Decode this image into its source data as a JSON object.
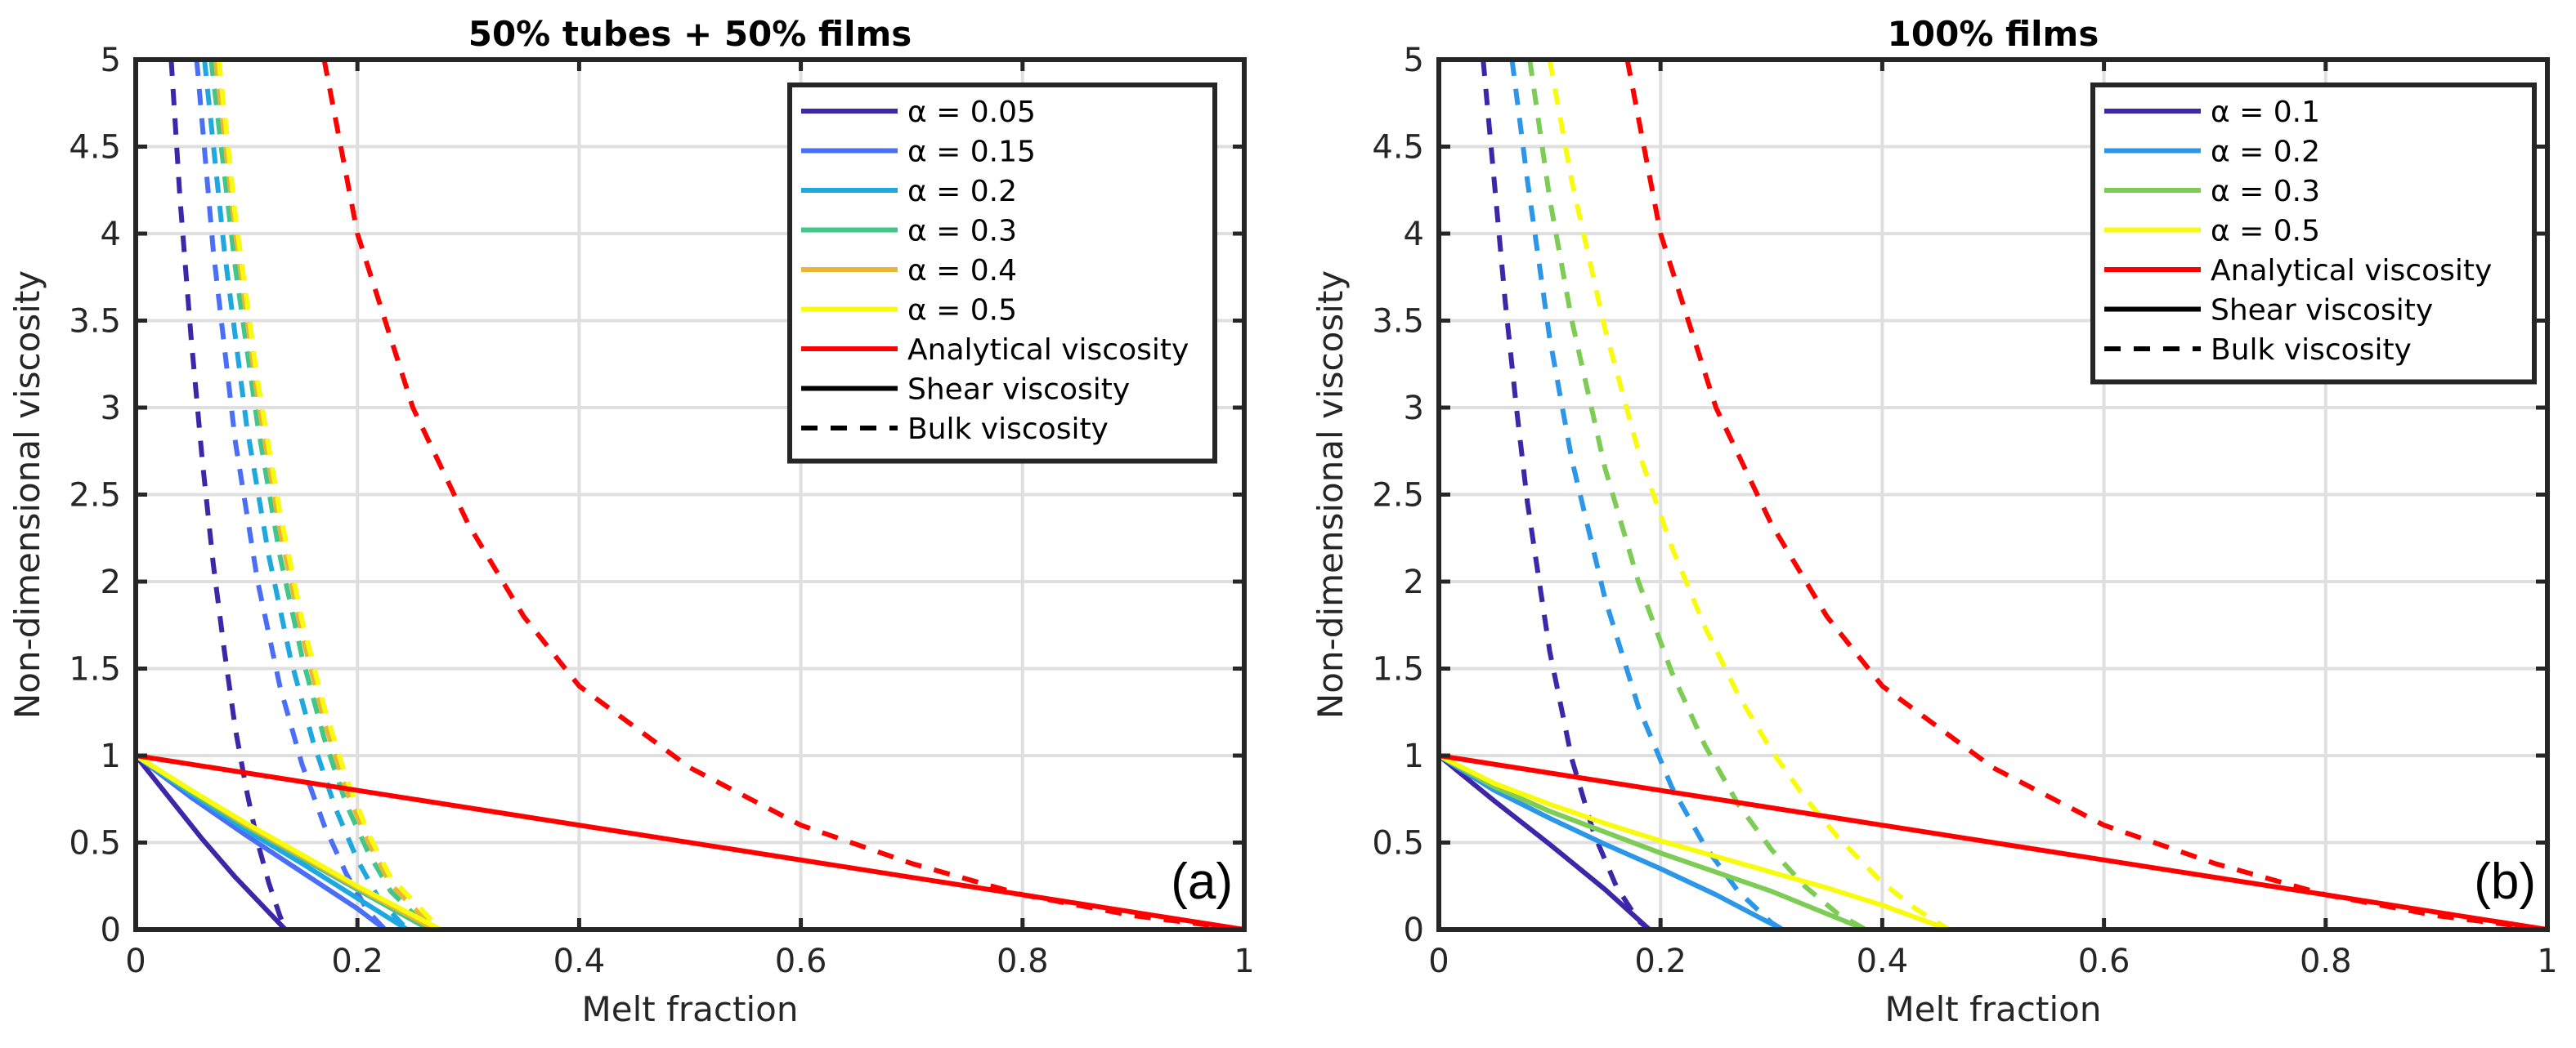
{
  "chart_data": [
    {
      "type": "line",
      "title": "50% tubes + 50% films",
      "panel_label": "(a)",
      "xlabel": "Melt fraction",
      "ylabel": "Non-dimensional viscosity",
      "xlim": [
        0,
        1
      ],
      "ylim": [
        0,
        5
      ],
      "xticks": [
        0,
        0.2,
        0.4,
        0.6,
        0.8,
        1
      ],
      "xtick_labels": [
        "0",
        "0.2",
        "0.4",
        "0.6",
        "0.8",
        "1"
      ],
      "yticks": [
        0,
        0.5,
        1,
        1.5,
        2,
        2.5,
        3,
        3.5,
        4,
        4.5,
        5
      ],
      "ytick_labels": [
        "0",
        "0.5",
        "1",
        "1.5",
        "2",
        "2.5",
        "3",
        "3.5",
        "4",
        "4.5",
        "5"
      ],
      "grid": true,
      "legend_position": "top-right",
      "legend": [
        {
          "label": "α = 0.05",
          "color": "#3e26a8",
          "style": "solid"
        },
        {
          "label": "α = 0.15",
          "color": "#4a6ef5",
          "style": "solid"
        },
        {
          "label": "α = 0.2",
          "color": "#1fa8e0",
          "style": "solid"
        },
        {
          "label": "α = 0.3",
          "color": "#42c68a",
          "style": "solid"
        },
        {
          "label": "α = 0.4",
          "color": "#e8b634",
          "style": "solid"
        },
        {
          "label": "α = 0.5",
          "color": "#f9fb0e",
          "style": "solid"
        },
        {
          "label": "Analytical viscosity",
          "color": "#ff0000",
          "style": "solid"
        },
        {
          "label": "Shear viscosity",
          "color": "#000000",
          "style": "solid"
        },
        {
          "label": "Bulk viscosity",
          "color": "#000000",
          "style": "dashed"
        }
      ],
      "series": [
        {
          "name": "α = 0.05 shear",
          "kind": "shear",
          "color": "#3e26a8",
          "dashed": false,
          "x": [
            0,
            0.03,
            0.06,
            0.09,
            0.12,
            0.135,
            1
          ],
          "y": [
            1,
            0.76,
            0.52,
            0.3,
            0.1,
            0,
            0
          ]
        },
        {
          "name": "α = 0.15 shear",
          "kind": "shear",
          "color": "#4a6ef5",
          "dashed": false,
          "x": [
            0,
            0.05,
            0.1,
            0.15,
            0.2,
            0.225,
            1
          ],
          "y": [
            1,
            0.76,
            0.54,
            0.33,
            0.12,
            0,
            0
          ]
        },
        {
          "name": "α = 0.2 shear",
          "kind": "shear",
          "color": "#1fa8e0",
          "dashed": false,
          "x": [
            0,
            0.05,
            0.1,
            0.15,
            0.2,
            0.245,
            1
          ],
          "y": [
            1,
            0.78,
            0.57,
            0.38,
            0.18,
            0,
            0
          ]
        },
        {
          "name": "α = 0.3 shear",
          "kind": "shear",
          "color": "#42c68a",
          "dashed": false,
          "x": [
            0,
            0.05,
            0.1,
            0.15,
            0.2,
            0.265,
            1
          ],
          "y": [
            1,
            0.79,
            0.59,
            0.41,
            0.23,
            0,
            0
          ]
        },
        {
          "name": "α = 0.4 shear",
          "kind": "shear",
          "color": "#e8b634",
          "dashed": false,
          "x": [
            0,
            0.05,
            0.1,
            0.15,
            0.2,
            0.27,
            1
          ],
          "y": [
            1,
            0.8,
            0.6,
            0.42,
            0.24,
            0,
            0
          ]
        },
        {
          "name": "α = 0.5 shear",
          "kind": "shear",
          "color": "#f9fb0e",
          "dashed": false,
          "x": [
            0,
            0.05,
            0.1,
            0.15,
            0.2,
            0.275,
            1
          ],
          "y": [
            1,
            0.8,
            0.61,
            0.43,
            0.25,
            0,
            0
          ]
        },
        {
          "name": "α = 0.05 bulk",
          "kind": "bulk",
          "color": "#3e26a8",
          "dashed": true,
          "x": [
            0.032,
            0.04,
            0.05,
            0.06,
            0.07,
            0.08,
            0.09,
            0.1,
            0.11,
            0.12,
            0.13,
            0.135
          ],
          "y": [
            5,
            4.2,
            3.4,
            2.7,
            2.1,
            1.6,
            1.15,
            0.8,
            0.5,
            0.27,
            0.08,
            0
          ]
        },
        {
          "name": "α = 0.15 bulk",
          "kind": "bulk",
          "color": "#4a6ef5",
          "dashed": true,
          "x": [
            0.055,
            0.07,
            0.09,
            0.11,
            0.13,
            0.15,
            0.17,
            0.19,
            0.21,
            0.225
          ],
          "y": [
            5,
            3.9,
            2.8,
            2.0,
            1.4,
            0.95,
            0.6,
            0.32,
            0.1,
            0
          ]
        },
        {
          "name": "α = 0.2 bulk",
          "kind": "bulk",
          "color": "#1fa8e0",
          "dashed": true,
          "x": [
            0.062,
            0.08,
            0.1,
            0.12,
            0.14,
            0.16,
            0.18,
            0.2,
            0.22,
            0.245
          ],
          "y": [
            5,
            3.9,
            2.9,
            2.15,
            1.55,
            1.08,
            0.7,
            0.4,
            0.17,
            0
          ]
        },
        {
          "name": "α = 0.3 bulk",
          "kind": "bulk",
          "color": "#42c68a",
          "dashed": true,
          "x": [
            0.068,
            0.09,
            0.11,
            0.13,
            0.15,
            0.17,
            0.19,
            0.21,
            0.23,
            0.265
          ],
          "y": [
            5,
            3.8,
            2.9,
            2.15,
            1.57,
            1.1,
            0.72,
            0.44,
            0.22,
            0
          ]
        },
        {
          "name": "α = 0.4 bulk",
          "kind": "bulk",
          "color": "#e8b634",
          "dashed": true,
          "x": [
            0.072,
            0.09,
            0.11,
            0.13,
            0.15,
            0.17,
            0.19,
            0.21,
            0.23,
            0.27
          ],
          "y": [
            5,
            4.0,
            3.05,
            2.3,
            1.7,
            1.2,
            0.8,
            0.5,
            0.26,
            0
          ]
        },
        {
          "name": "α = 0.5 bulk",
          "kind": "bulk",
          "color": "#f9fb0e",
          "dashed": true,
          "x": [
            0.075,
            0.09,
            0.11,
            0.13,
            0.15,
            0.17,
            0.19,
            0.21,
            0.23,
            0.275
          ],
          "y": [
            5,
            4.1,
            3.15,
            2.4,
            1.78,
            1.28,
            0.87,
            0.55,
            0.3,
            0
          ]
        },
        {
          "name": "Analytical shear",
          "kind": "analytical",
          "color": "#ff0000",
          "dashed": false,
          "x": [
            0,
            1
          ],
          "y": [
            1,
            0
          ]
        },
        {
          "name": "Analytical bulk",
          "kind": "analytical",
          "color": "#ff0000",
          "dashed": true,
          "x": [
            0.17,
            0.2,
            0.25,
            0.3,
            0.35,
            0.4,
            0.5,
            0.6,
            0.7,
            0.8,
            0.9,
            1.0
          ],
          "y": [
            5,
            4.0,
            3.0,
            2.33,
            1.8,
            1.4,
            0.93,
            0.6,
            0.38,
            0.2,
            0.08,
            0
          ]
        }
      ]
    },
    {
      "type": "line",
      "title": "100% films",
      "panel_label": "(b)",
      "xlabel": "Melt fraction",
      "ylabel": "Non-dimensional viscosity",
      "xlim": [
        0,
        1
      ],
      "ylim": [
        0,
        5
      ],
      "xticks": [
        0,
        0.2,
        0.4,
        0.6,
        0.8,
        1
      ],
      "xtick_labels": [
        "0",
        "0.2",
        "0.4",
        "0.6",
        "0.8",
        "1"
      ],
      "yticks": [
        0,
        0.5,
        1,
        1.5,
        2,
        2.5,
        3,
        3.5,
        4,
        4.5,
        5
      ],
      "ytick_labels": [
        "0",
        "0.5",
        "1",
        "1.5",
        "2",
        "2.5",
        "3",
        "3.5",
        "4",
        "4.5",
        "5"
      ],
      "grid": true,
      "legend_position": "top-right",
      "legend": [
        {
          "label": "α = 0.1",
          "color": "#3e26a8",
          "style": "solid"
        },
        {
          "label": "α = 0.2",
          "color": "#2c96e8",
          "style": "solid"
        },
        {
          "label": "α = 0.3",
          "color": "#7ccc55",
          "style": "solid"
        },
        {
          "label": "α = 0.5",
          "color": "#f9fb0e",
          "style": "solid"
        },
        {
          "label": "Analytical viscosity",
          "color": "#ff0000",
          "style": "solid"
        },
        {
          "label": "Shear viscosity",
          "color": "#000000",
          "style": "solid"
        },
        {
          "label": "Bulk viscosity",
          "color": "#000000",
          "style": "dashed"
        }
      ],
      "series": [
        {
          "name": "α = 0.1 shear",
          "kind": "shear",
          "color": "#3e26a8",
          "dashed": false,
          "x": [
            0,
            0.05,
            0.1,
            0.15,
            0.19,
            1
          ],
          "y": [
            1,
            0.74,
            0.49,
            0.23,
            0,
            0
          ]
        },
        {
          "name": "α = 0.2 shear",
          "kind": "shear",
          "color": "#2c96e8",
          "dashed": false,
          "x": [
            0,
            0.05,
            0.1,
            0.15,
            0.2,
            0.25,
            0.31,
            1
          ],
          "y": [
            1,
            0.8,
            0.64,
            0.49,
            0.35,
            0.2,
            0,
            0
          ]
        },
        {
          "name": "α = 0.3 shear",
          "kind": "shear",
          "color": "#7ccc55",
          "dashed": false,
          "x": [
            0,
            0.05,
            0.1,
            0.15,
            0.2,
            0.25,
            0.3,
            0.385,
            1
          ],
          "y": [
            1,
            0.82,
            0.68,
            0.56,
            0.44,
            0.33,
            0.22,
            0,
            0
          ]
        },
        {
          "name": "α = 0.5 shear",
          "kind": "shear",
          "color": "#f9fb0e",
          "dashed": false,
          "x": [
            0,
            0.05,
            0.1,
            0.15,
            0.2,
            0.25,
            0.3,
            0.35,
            0.4,
            0.46,
            1
          ],
          "y": [
            1,
            0.84,
            0.72,
            0.61,
            0.51,
            0.42,
            0.33,
            0.24,
            0.14,
            0,
            0
          ]
        },
        {
          "name": "α = 0.1 bulk",
          "kind": "bulk",
          "color": "#3e26a8",
          "dashed": true,
          "x": [
            0.04,
            0.05,
            0.06,
            0.07,
            0.08,
            0.1,
            0.12,
            0.14,
            0.16,
            0.18,
            0.19
          ],
          "y": [
            5,
            4.3,
            3.6,
            3.0,
            2.45,
            1.6,
            0.98,
            0.55,
            0.25,
            0.05,
            0
          ]
        },
        {
          "name": "α = 0.2 bulk",
          "kind": "bulk",
          "color": "#2c96e8",
          "dashed": true,
          "x": [
            0.066,
            0.08,
            0.1,
            0.12,
            0.15,
            0.18,
            0.21,
            0.24,
            0.27,
            0.3,
            0.31
          ],
          "y": [
            5,
            4.3,
            3.4,
            2.7,
            1.9,
            1.28,
            0.82,
            0.48,
            0.22,
            0.04,
            0
          ]
        },
        {
          "name": "α = 0.3 bulk",
          "kind": "bulk",
          "color": "#7ccc55",
          "dashed": true,
          "x": [
            0.082,
            0.1,
            0.12,
            0.15,
            0.18,
            0.21,
            0.24,
            0.27,
            0.3,
            0.33,
            0.36,
            0.385
          ],
          "y": [
            5,
            4.2,
            3.5,
            2.65,
            2.0,
            1.48,
            1.06,
            0.72,
            0.46,
            0.25,
            0.09,
            0
          ]
        },
        {
          "name": "α = 0.5 bulk",
          "kind": "bulk",
          "color": "#f9fb0e",
          "dashed": true,
          "x": [
            0.1,
            0.12,
            0.15,
            0.18,
            0.21,
            0.24,
            0.27,
            0.3,
            0.33,
            0.36,
            0.4,
            0.43,
            0.46
          ],
          "y": [
            5,
            4.3,
            3.45,
            2.75,
            2.2,
            1.74,
            1.35,
            1.03,
            0.76,
            0.53,
            0.27,
            0.12,
            0
          ]
        },
        {
          "name": "Analytical shear",
          "kind": "analytical",
          "color": "#ff0000",
          "dashed": false,
          "x": [
            0,
            1
          ],
          "y": [
            1,
            0
          ]
        },
        {
          "name": "Analytical bulk",
          "kind": "analytical",
          "color": "#ff0000",
          "dashed": true,
          "x": [
            0.17,
            0.2,
            0.25,
            0.3,
            0.35,
            0.4,
            0.5,
            0.6,
            0.7,
            0.8,
            0.9,
            1.0
          ],
          "y": [
            5,
            4.0,
            3.0,
            2.33,
            1.8,
            1.4,
            0.93,
            0.6,
            0.38,
            0.2,
            0.08,
            0
          ]
        }
      ]
    }
  ]
}
